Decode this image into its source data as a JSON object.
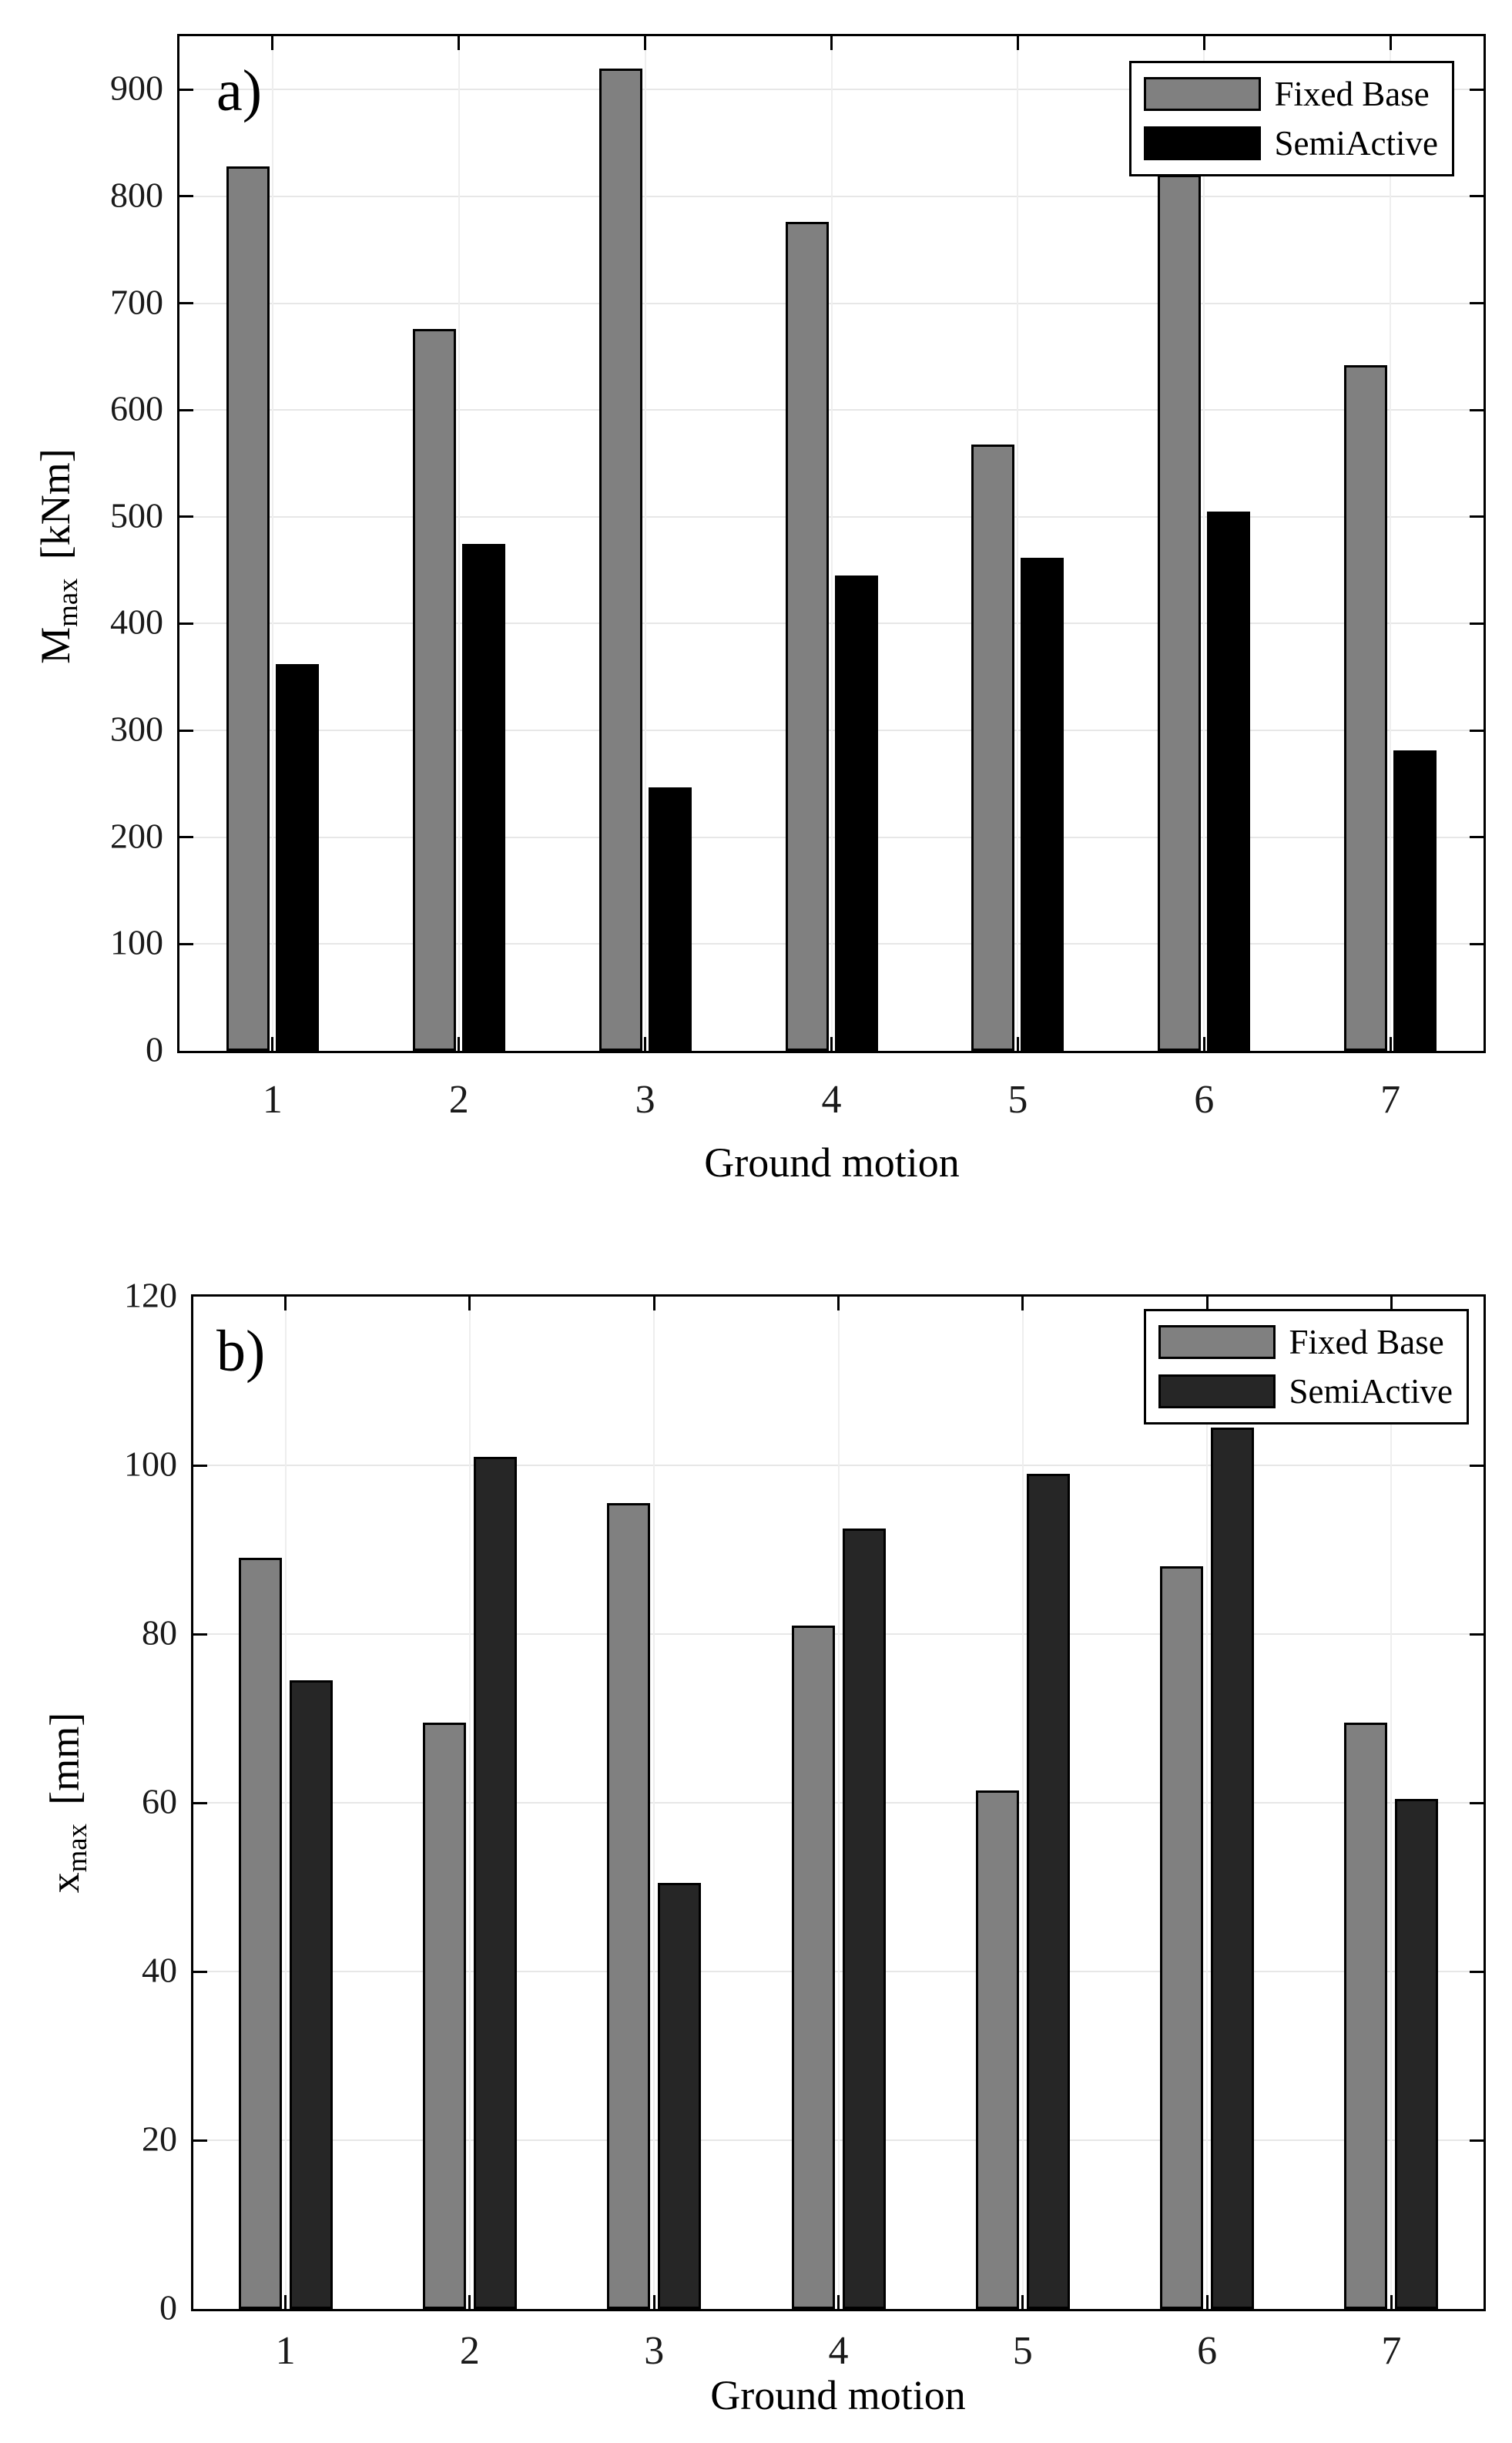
{
  "chart_data": [
    {
      "type": "bar",
      "panel_label": "a)",
      "categories": [
        1,
        2,
        3,
        4,
        5,
        6,
        7
      ],
      "xlabel": "Ground motion",
      "ylabel": "M_max [kNm]",
      "ylabel_main": "M",
      "ylabel_sub": "max",
      "ylabel_unit": "[kNm]",
      "ylim": [
        0,
        950
      ],
      "yticks": [
        0,
        100,
        200,
        300,
        400,
        500,
        600,
        700,
        800,
        900
      ],
      "grid": true,
      "legend_position": "top-right",
      "series": [
        {
          "name": "Fixed Base",
          "color": "#808080",
          "values": [
            828,
            676,
            920,
            776,
            568,
            820,
            642
          ]
        },
        {
          "name": "SemiActive",
          "color": "#000000",
          "values": [
            362,
            475,
            247,
            445,
            462,
            505,
            281
          ]
        }
      ]
    },
    {
      "type": "bar",
      "panel_label": "b)",
      "categories": [
        1,
        2,
        3,
        4,
        5,
        6,
        7
      ],
      "xlabel": "Ground motion",
      "ylabel": "x_max [mm]",
      "ylabel_main": "x",
      "ylabel_sub": "max",
      "ylabel_unit": "[mm]",
      "ylim": [
        0,
        120
      ],
      "yticks": [
        0,
        20,
        40,
        60,
        80,
        100,
        120
      ],
      "grid": true,
      "legend_position": "top-right",
      "series": [
        {
          "name": "Fixed Base",
          "color": "#808080",
          "values": [
            89,
            69.5,
            95.5,
            81,
            61.5,
            88,
            69.5
          ]
        },
        {
          "name": "SemiActive",
          "color": "#262626",
          "values": [
            74.5,
            101,
            50.5,
            92.5,
            99,
            104.5,
            60.5
          ]
        }
      ]
    }
  ],
  "colors": {
    "fixed_base": "#808080",
    "semiactive_a": "#000000",
    "semiactive_b": "#262626",
    "gridline": "#e7e7e7",
    "axis": "#000000"
  }
}
